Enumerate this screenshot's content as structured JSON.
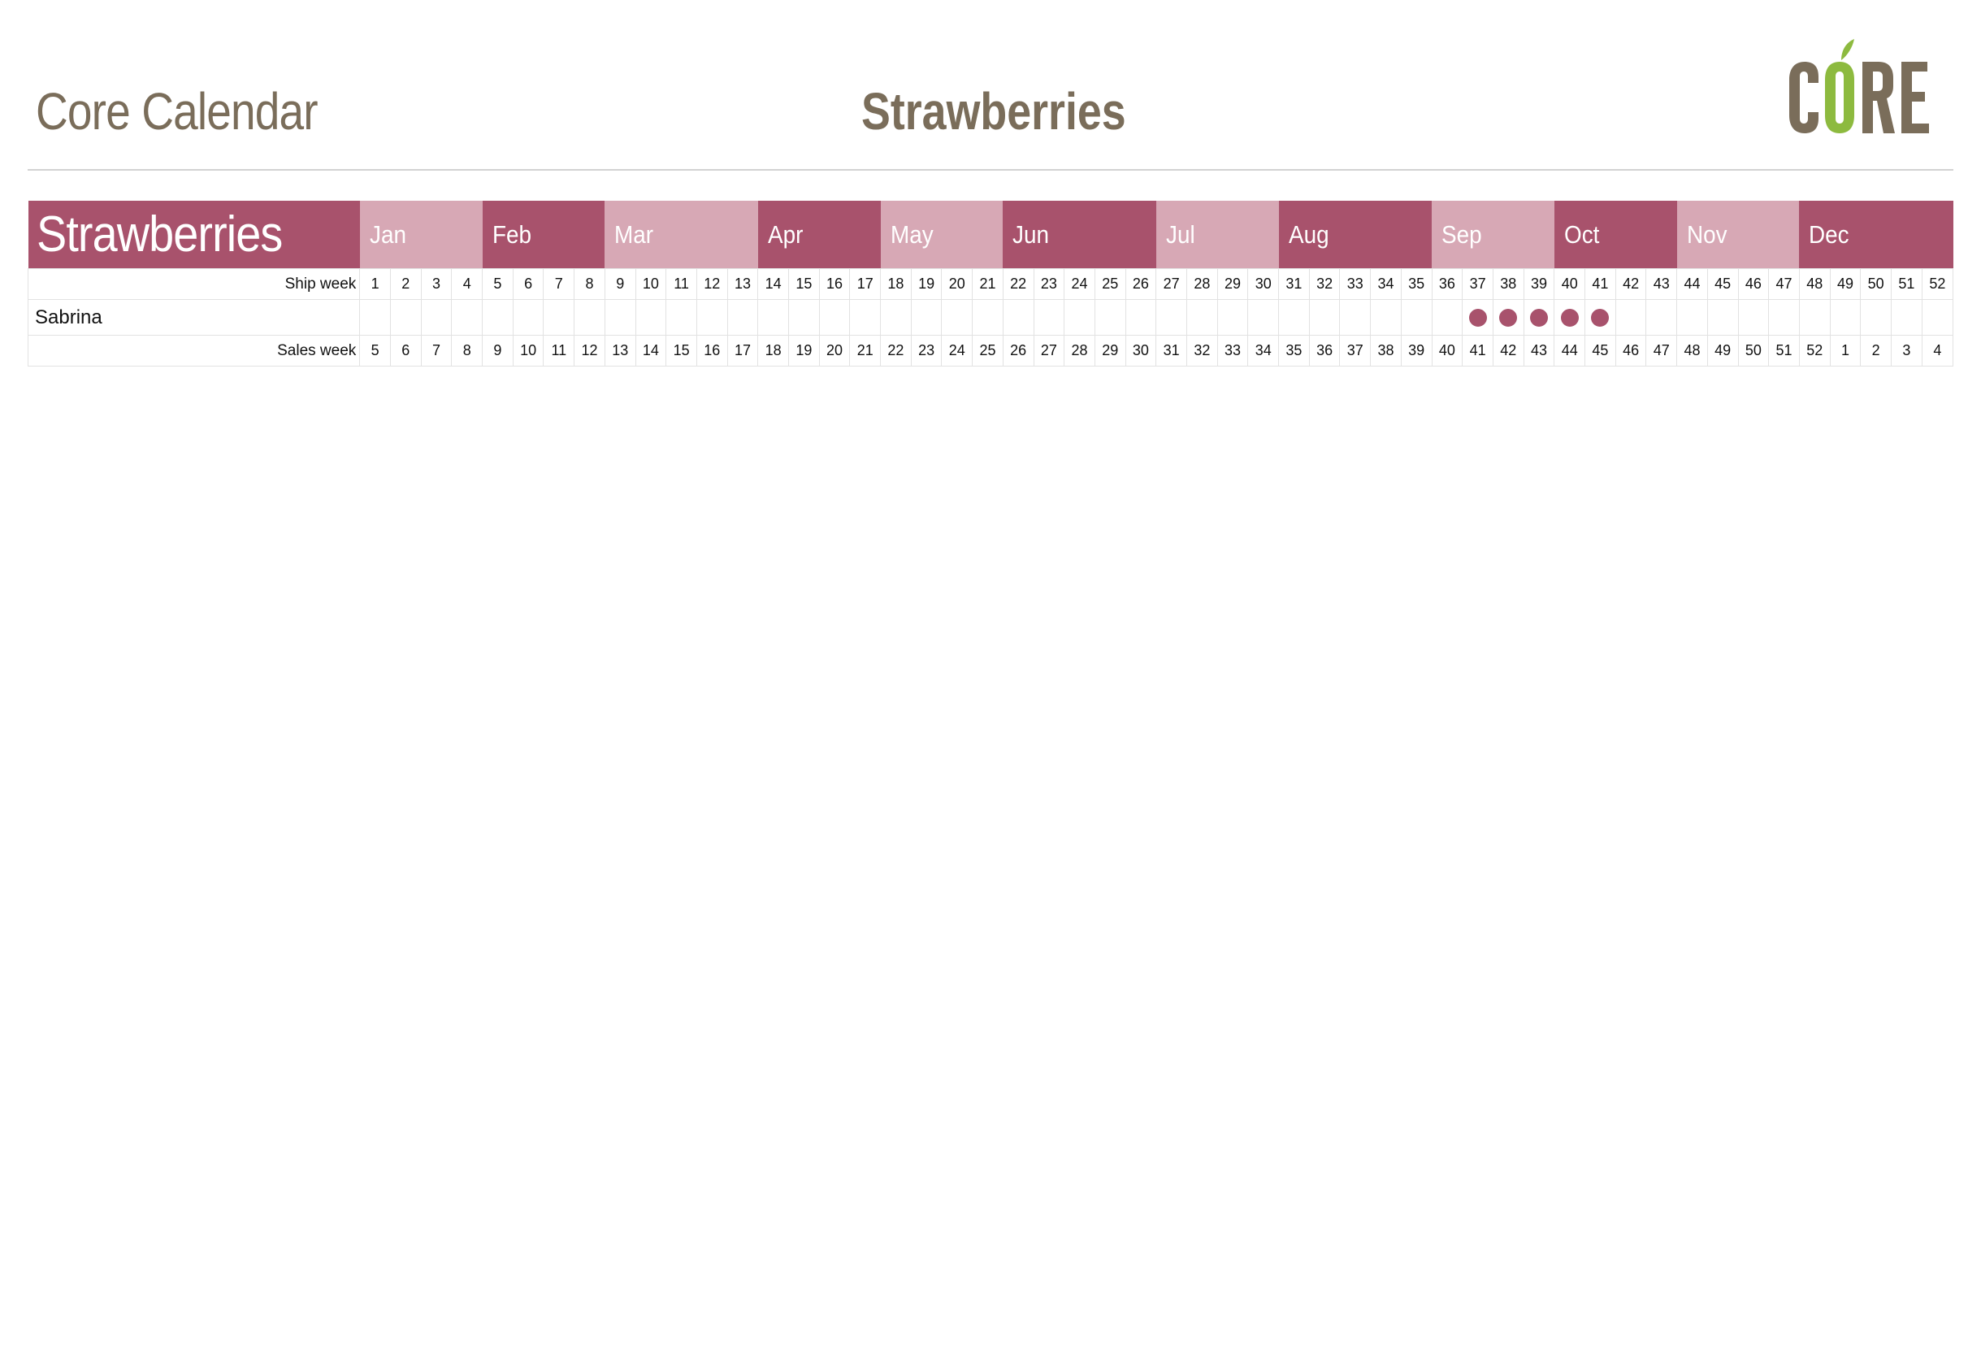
{
  "page": {
    "left_title": "Core Calendar",
    "center_title": "Strawberries"
  },
  "logo": {
    "text": "CORE",
    "letter_color": "#7a6d5a",
    "accent_color": "#8dba3f"
  },
  "colors": {
    "month_dark": "#a8526c",
    "month_light": "#d7a8b5",
    "dot": "#a8526c",
    "header_text": "#7a6d5a"
  },
  "calendar": {
    "product_title": "Strawberries",
    "months": [
      {
        "label": "Jan",
        "weeks": 4,
        "shade": "light"
      },
      {
        "label": "Feb",
        "weeks": 4,
        "shade": "dark"
      },
      {
        "label": "Mar",
        "weeks": 5,
        "shade": "light"
      },
      {
        "label": "Apr",
        "weeks": 4,
        "shade": "dark"
      },
      {
        "label": "May",
        "weeks": 4,
        "shade": "light"
      },
      {
        "label": "Jun",
        "weeks": 5,
        "shade": "dark"
      },
      {
        "label": "Jul",
        "weeks": 4,
        "shade": "light"
      },
      {
        "label": "Aug",
        "weeks": 5,
        "shade": "dark"
      },
      {
        "label": "Sep",
        "weeks": 4,
        "shade": "light"
      },
      {
        "label": "Oct",
        "weeks": 4,
        "shade": "dark"
      },
      {
        "label": "Nov",
        "weeks": 4,
        "shade": "light"
      },
      {
        "label": "Dec",
        "weeks": 5,
        "shade": "dark"
      }
    ],
    "ship_week_label": "Ship week",
    "ship_weeks": [
      "1",
      "2",
      "3",
      "4",
      "5",
      "6",
      "7",
      "8",
      "9",
      "10",
      "11",
      "12",
      "13",
      "14",
      "15",
      "16",
      "17",
      "18",
      "19",
      "20",
      "21",
      "22",
      "23",
      "24",
      "25",
      "26",
      "27",
      "28",
      "29",
      "30",
      "31",
      "32",
      "33",
      "34",
      "35",
      "36",
      "37",
      "38",
      "39",
      "40",
      "41",
      "42",
      "43",
      "44",
      "45",
      "46",
      "47",
      "48",
      "49",
      "50",
      "51",
      "52"
    ],
    "sales_week_label": "Sales week",
    "sales_weeks": [
      "5",
      "6",
      "7",
      "8",
      "9",
      "10",
      "11",
      "12",
      "13",
      "14",
      "15",
      "16",
      "17",
      "18",
      "19",
      "20",
      "21",
      "22",
      "23",
      "24",
      "25",
      "26",
      "27",
      "28",
      "29",
      "30",
      "31",
      "32",
      "33",
      "34",
      "35",
      "36",
      "37",
      "38",
      "39",
      "40",
      "41",
      "42",
      "43",
      "44",
      "45",
      "46",
      "47",
      "48",
      "49",
      "50",
      "51",
      "52",
      "1",
      "2",
      "3",
      "4"
    ],
    "growers": [
      {
        "name": "Sabrina",
        "available_ship_weeks": [
          37,
          38,
          39,
          40,
          41
        ]
      }
    ]
  }
}
